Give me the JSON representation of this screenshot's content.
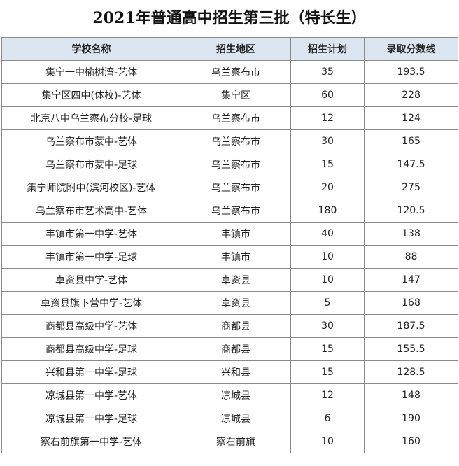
{
  "title": "2021年普通高中招生第三批（特长生）",
  "table": {
    "headers": [
      "学校名称",
      "招生地区",
      "招生计划",
      "录取分数线"
    ],
    "rows": [
      [
        "集宁一中榆树湾-艺体",
        "乌兰察布市",
        "35",
        "193.5"
      ],
      [
        "集宁区四中(体校)-艺体",
        "集宁区",
        "60",
        "228"
      ],
      [
        "北京八中乌兰察布分校-足球",
        "乌兰察布市",
        "12",
        "124"
      ],
      [
        "乌兰察布市蒙中-艺体",
        "乌兰察布市",
        "30",
        "165"
      ],
      [
        "乌兰察布市蒙中-足球",
        "乌兰察布市",
        "15",
        "147.5"
      ],
      [
        "集宁师院附中(滨河校区)-艺体",
        "乌兰察布市",
        "20",
        "275"
      ],
      [
        "乌兰察布市艺术高中-艺体",
        "乌兰察布市",
        "180",
        "120.5"
      ],
      [
        "丰镇市第一中学-艺体",
        "丰镇市",
        "40",
        "138"
      ],
      [
        "丰镇市第一中学-足球",
        "丰镇市",
        "10",
        "88"
      ],
      [
        "卓资县中学-艺体",
        "卓资县",
        "10",
        "147"
      ],
      [
        "卓资县旗下营中学-艺体",
        "卓资县",
        "5",
        "168"
      ],
      [
        "商都县高级中学-艺体",
        "商都县",
        "30",
        "187.5"
      ],
      [
        "商都县高级中学-足球",
        "商都县",
        "15",
        "155.5"
      ],
      [
        "兴和县第一中学-足球",
        "兴和县",
        "15",
        "128.5"
      ],
      [
        "凉城县第一中学-艺体",
        "凉城县",
        "12",
        "148"
      ],
      [
        "凉城县第一中学-足球",
        "凉城县",
        "6",
        "190"
      ],
      [
        "察右前旗第一中学-艺体",
        "察右前旗",
        "10",
        "160"
      ]
    ]
  }
}
